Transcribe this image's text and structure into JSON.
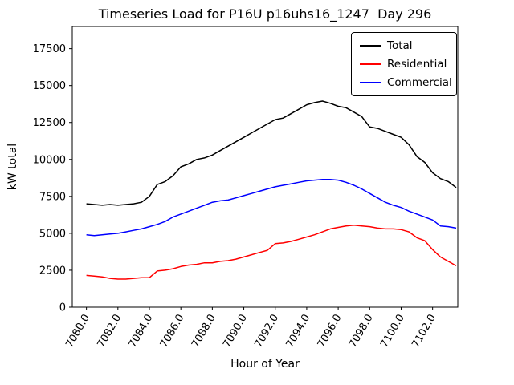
{
  "chart_data": {
    "type": "line",
    "title": "Timeseries Load for P16U p16uhs16_1247  Day 296",
    "xlabel": "Hour of Year",
    "ylabel": "kW total",
    "xlim": [
      7079.1,
      7103.6
    ],
    "ylim": [
      0,
      19000
    ],
    "grid": false,
    "legend_position": "upper right",
    "x_ticks": [
      7080,
      7082,
      7084,
      7086,
      7088,
      7090,
      7092,
      7094,
      7096,
      7098,
      7100,
      7102
    ],
    "x_tick_labels": [
      "7080.0",
      "7082.0",
      "7084.0",
      "7086.0",
      "7088.0",
      "7090.0",
      "7092.0",
      "7094.0",
      "7096.0",
      "7098.0",
      "7100.0",
      "7102.0"
    ],
    "y_ticks": [
      0,
      2500,
      5000,
      7500,
      10000,
      12500,
      15000,
      17500
    ],
    "x_start": 7080.0,
    "x_step": 0.5,
    "series": [
      {
        "name": "Total",
        "color": "#000000",
        "values": [
          7000,
          6950,
          6900,
          6950,
          6900,
          6950,
          7000,
          7100,
          7500,
          8300,
          8500,
          8900,
          9500,
          9700,
          10000,
          10100,
          10300,
          10600,
          10900,
          11200,
          11500,
          11800,
          12100,
          12400,
          12700,
          12800,
          13100,
          13400,
          13700,
          13850,
          13950,
          13800,
          13600,
          13500,
          13200,
          12900,
          12200,
          12100,
          11900,
          11700,
          11500,
          11000,
          10200,
          9800,
          9100,
          8700,
          8500,
          8100
        ]
      },
      {
        "name": "Residential",
        "color": "#ff0000",
        "values": [
          2150,
          2100,
          2050,
          1950,
          1900,
          1900,
          1950,
          2000,
          2000,
          2450,
          2500,
          2600,
          2750,
          2850,
          2900,
          3000,
          3000,
          3100,
          3150,
          3250,
          3400,
          3550,
          3700,
          3850,
          4300,
          4350,
          4450,
          4600,
          4750,
          4900,
          5100,
          5300,
          5400,
          5500,
          5550,
          5500,
          5450,
          5350,
          5300,
          5300,
          5250,
          5100,
          4700,
          4500,
          3900,
          3400,
          3100,
          2800
        ]
      },
      {
        "name": "Commercial",
        "color": "#0000ff",
        "values": [
          4900,
          4850,
          4900,
          4950,
          5000,
          5100,
          5200,
          5300,
          5450,
          5600,
          5800,
          6100,
          6300,
          6500,
          6700,
          6900,
          7100,
          7200,
          7250,
          7400,
          7550,
          7700,
          7850,
          8000,
          8150,
          8250,
          8350,
          8450,
          8550,
          8600,
          8650,
          8650,
          8600,
          8450,
          8250,
          8000,
          7700,
          7400,
          7100,
          6900,
          6750,
          6500,
          6300,
          6100,
          5900,
          5500,
          5450,
          5350
        ]
      }
    ]
  }
}
